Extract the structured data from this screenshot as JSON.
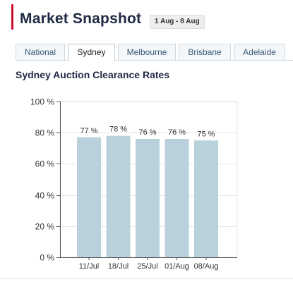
{
  "header": {
    "title": "Market Snapshot",
    "date_range": "1 Aug - 8 Aug"
  },
  "tabs": [
    {
      "label": "National",
      "active": false
    },
    {
      "label": "Sydney",
      "active": true
    },
    {
      "label": "Melbourne",
      "active": false
    },
    {
      "label": "Brisbane",
      "active": false
    },
    {
      "label": "Adelaide",
      "active": false
    }
  ],
  "subtitle": "Sydney Auction Clearance Rates",
  "colors": {
    "bar": "#b9d1da",
    "grid": "#e6e6e6",
    "axis": "#555555",
    "accent": "#c8102e"
  },
  "chart_data": {
    "type": "bar",
    "title": "Sydney Auction Clearance Rates",
    "xlabel": "",
    "ylabel": "",
    "categories": [
      "11/Jul",
      "18/Jul",
      "25/Jul",
      "01/Aug",
      "08/Aug"
    ],
    "values": [
      77,
      78,
      76,
      76,
      75
    ],
    "data_labels": [
      "77 %",
      "78 %",
      "76 %",
      "76 %",
      "75 %"
    ],
    "ylim": [
      0,
      100
    ],
    "yticks": [
      0,
      20,
      40,
      60,
      80,
      100
    ],
    "ytick_labels": [
      "0 %",
      "20 %",
      "40 %",
      "60 %",
      "80 %",
      "100 %"
    ],
    "grid": true,
    "legend": "none"
  }
}
